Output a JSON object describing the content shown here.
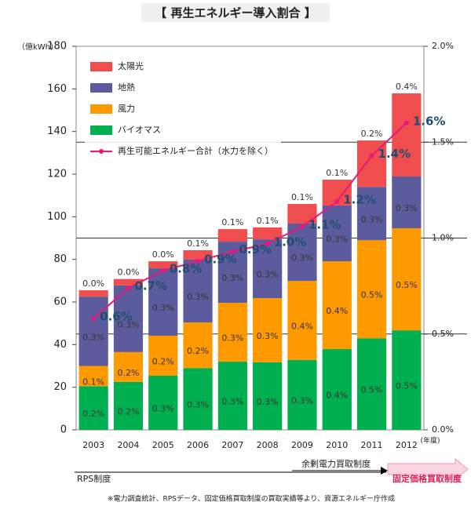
{
  "chart_data": {
    "type": "stacked-bar-line",
    "title": "【 再生エネルギー導入割合 】",
    "y_label": "（億kWh）",
    "x_label": "(年度)",
    "categories": [
      "2003",
      "2004",
      "2005",
      "2006",
      "2007",
      "2008",
      "2009",
      "2010",
      "2011",
      "2012"
    ],
    "ylim": [
      0,
      180
    ],
    "yticks": [
      0,
      20,
      40,
      60,
      80,
      100,
      120,
      140,
      160,
      180
    ],
    "y2lim": [
      0,
      2.0
    ],
    "y2ticks": [
      {
        "value": 0,
        "label": "0.0%"
      },
      {
        "value": 0.5,
        "label": "0.5%"
      },
      {
        "value": 1.0,
        "label": "1.0%"
      },
      {
        "value": 1.5,
        "label": "1.5%"
      },
      {
        "value": 2.0,
        "label": "2.0%"
      }
    ],
    "y2grid": true,
    "series": [
      {
        "name": "バイオマス",
        "color": "#00b050",
        "values": [
          20.5,
          22.5,
          25.4,
          29,
          32,
          31.7,
          32.8,
          37.9,
          43,
          46.7
        ],
        "share_labels": [
          "0.2%",
          "0.2%",
          "0.3%",
          "0.3%",
          "0.3%",
          "0.3%",
          "0.3%",
          "0.4%",
          "0.5%",
          "0.5%"
        ]
      },
      {
        "name": "風力",
        "color": "#ff9900",
        "values": [
          9.5,
          14,
          18.8,
          21.4,
          27.6,
          30.1,
          37.1,
          41.2,
          46,
          47.9
        ],
        "share_labels": [
          "0.1%",
          "0.2%",
          "0.2%",
          "0.2%",
          "0.3%",
          "0.3%",
          "0.4%",
          "0.4%",
          "0.5%",
          "0.5%"
        ]
      },
      {
        "name": "地熱",
        "color": "#5b5b9e",
        "values": [
          32.5,
          31.3,
          31.6,
          29.5,
          28.7,
          27.6,
          26.9,
          26.2,
          25,
          24.3
        ],
        "share_labels": [
          "0.3%",
          "0.3%",
          "0.3%",
          "0.3%",
          "0.3%",
          "0.3%",
          "0.3%",
          "0.3%",
          "0.3%",
          "0.3%"
        ]
      },
      {
        "name": "太陽光",
        "color": "#f04e4e",
        "values": [
          3,
          3,
          3.3,
          4.4,
          5.9,
          5.6,
          9.2,
          12.1,
          21.8,
          39
        ],
        "share_labels": [
          "0.0%",
          "0.0%",
          "0.0%",
          "0.1%",
          "0.1%",
          "0.1%",
          "0.1%",
          "0.1%",
          "0.2%",
          "0.4%"
        ]
      },
      {
        "name": "再生可能エネルギー合計（水力を除く）",
        "color": "#e6197a",
        "axis": "y2",
        "values": [
          0.58,
          0.74,
          0.83,
          0.88,
          0.93,
          0.97,
          1.06,
          1.19,
          1.43,
          1.6
        ],
        "value_labels": [
          "0.6%",
          "0.7%",
          "0.8%",
          "0.9%",
          "0.9%",
          "1.0%",
          "1.1%",
          "1.2%",
          "1.4%",
          "1.6%"
        ]
      }
    ],
    "annotations": {
      "feed_in_surplus": "余剰電力買取制度",
      "rps": "RPS制度",
      "fixed_price": "固定価格買取制度",
      "footnote": "※電力調査統計、RPSデータ、固定価格買取制度の買取実績等より、資源エネルギー庁作成"
    }
  }
}
